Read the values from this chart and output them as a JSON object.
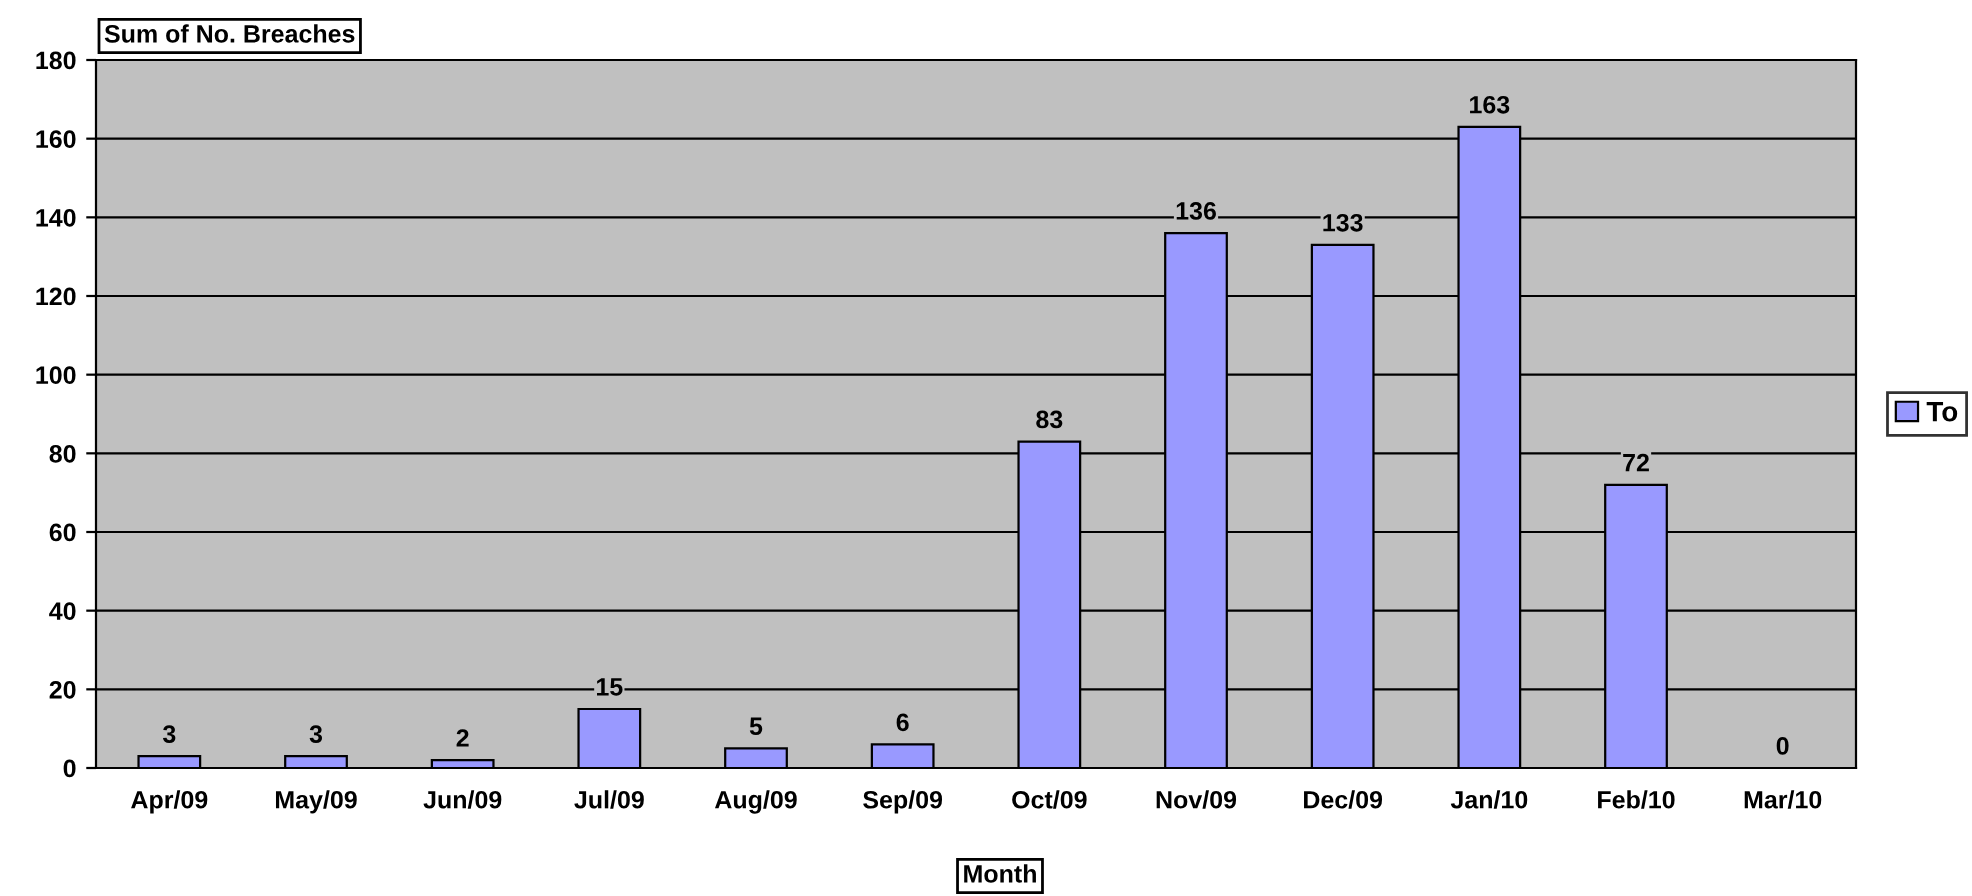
{
  "chart_data": {
    "type": "bar",
    "ylabel": "Sum of No. Breaches",
    "xlabel": "Month",
    "categories": [
      "Apr/09",
      "May/09",
      "Jun/09",
      "Jul/09",
      "Aug/09",
      "Sep/09",
      "Oct/09",
      "Nov/09",
      "Dec/09",
      "Jan/10",
      "Feb/10",
      "Mar/10"
    ],
    "series": [
      {
        "name": "To",
        "color": "#9999ff",
        "values": [
          3,
          3,
          2,
          15,
          5,
          6,
          83,
          136,
          133,
          163,
          72,
          0
        ]
      }
    ],
    "ylim": [
      0,
      180
    ],
    "yticks": [
      0,
      20,
      40,
      60,
      80,
      100,
      120,
      140,
      160,
      180
    ],
    "grid": "y",
    "legend": "right",
    "data_labels": true
  }
}
